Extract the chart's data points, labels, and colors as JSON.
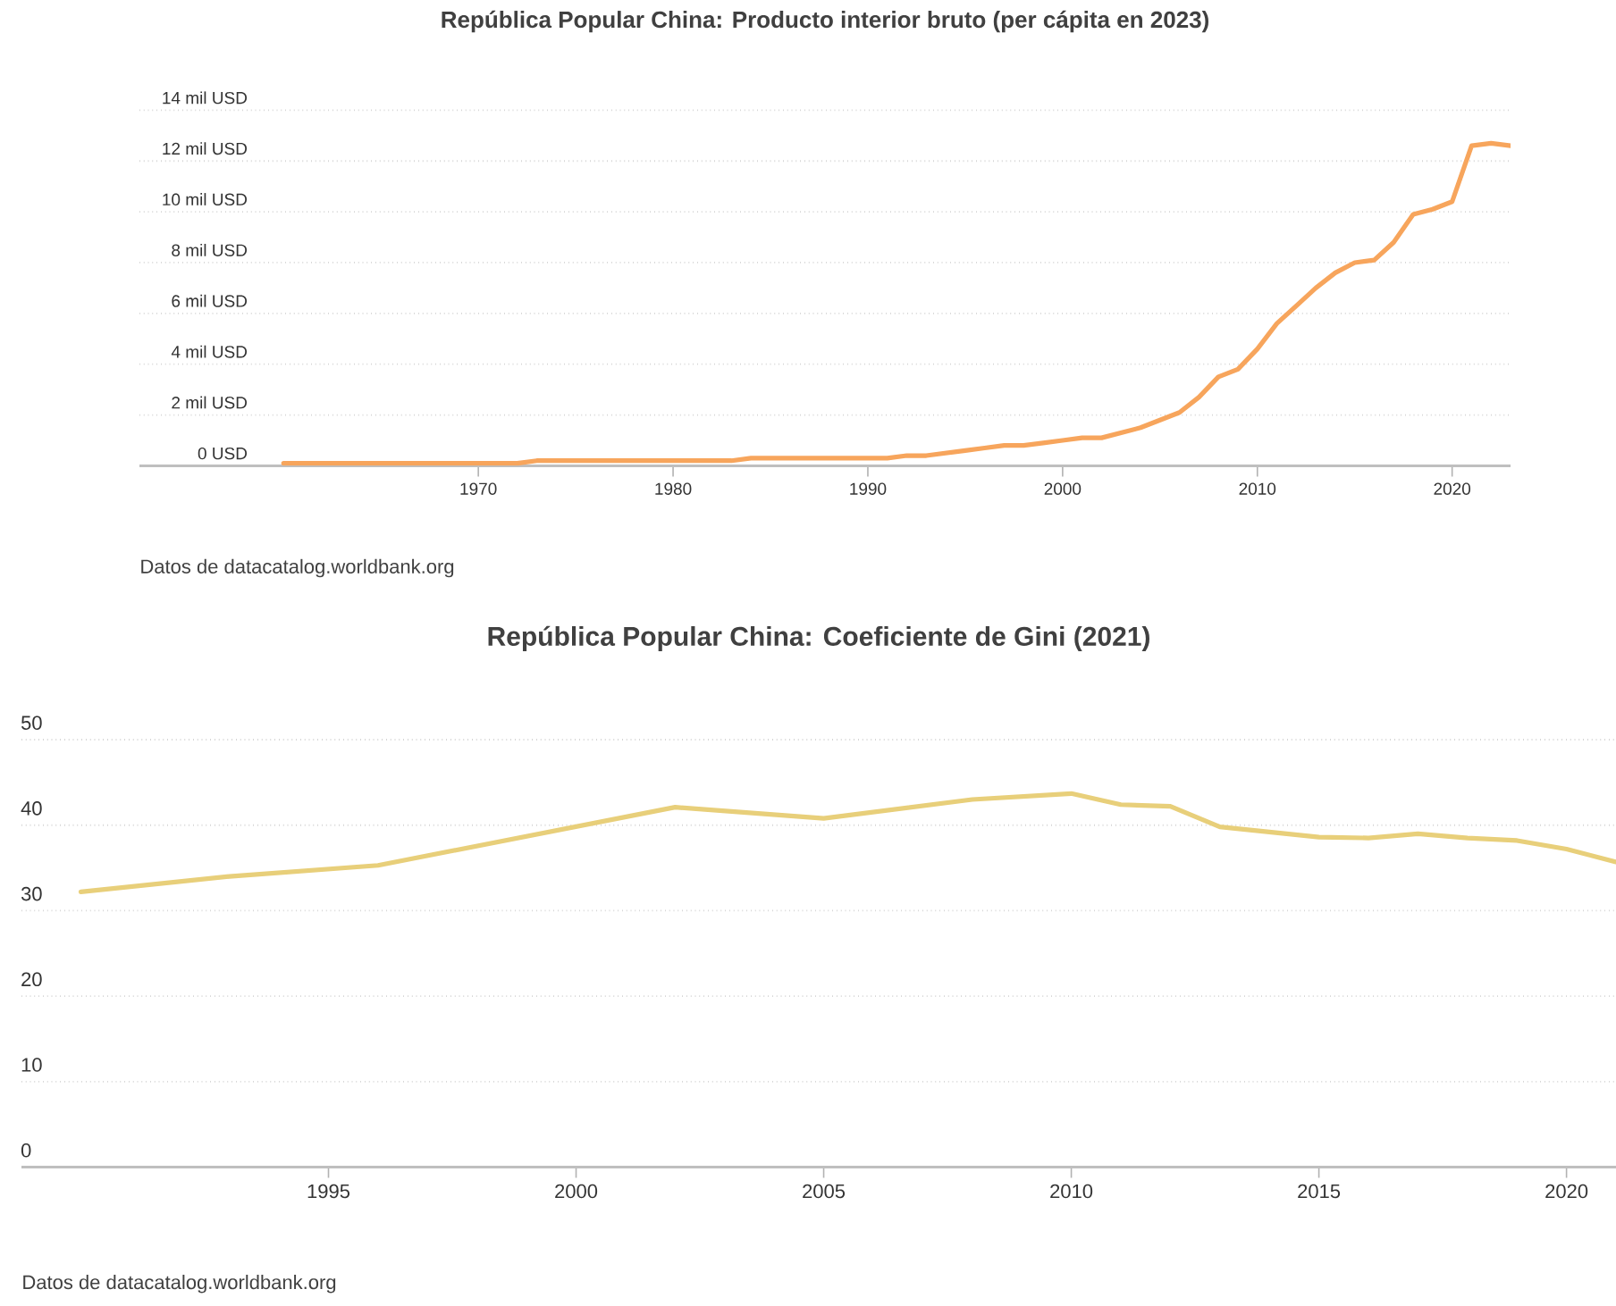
{
  "chart_data": [
    {
      "type": "line",
      "title": "República Popular China: Producto interior bruto (per cápita en 2023)",
      "color": "#f7a55c",
      "grid": "y",
      "x": [
        1960,
        1961,
        1962,
        1963,
        1964,
        1965,
        1966,
        1967,
        1968,
        1969,
        1970,
        1971,
        1972,
        1973,
        1974,
        1975,
        1976,
        1977,
        1978,
        1979,
        1980,
        1981,
        1982,
        1983,
        1984,
        1985,
        1986,
        1987,
        1988,
        1989,
        1990,
        1991,
        1992,
        1993,
        1994,
        1995,
        1996,
        1997,
        1998,
        1999,
        2000,
        2001,
        2002,
        2003,
        2004,
        2005,
        2006,
        2007,
        2008,
        2009,
        2010,
        2011,
        2012,
        2013,
        2014,
        2015,
        2016,
        2017,
        2018,
        2019,
        2020,
        2021,
        2022,
        2023
      ],
      "values": [
        0.1,
        0.1,
        0.1,
        0.1,
        0.1,
        0.1,
        0.1,
        0.1,
        0.1,
        0.1,
        0.1,
        0.1,
        0.1,
        0.2,
        0.2,
        0.2,
        0.2,
        0.2,
        0.2,
        0.2,
        0.2,
        0.2,
        0.2,
        0.2,
        0.3,
        0.3,
        0.3,
        0.3,
        0.3,
        0.3,
        0.3,
        0.3,
        0.4,
        0.4,
        0.5,
        0.6,
        0.7,
        0.8,
        0.8,
        0.9,
        1.0,
        1.1,
        1.1,
        1.3,
        1.5,
        1.8,
        2.1,
        2.7,
        3.5,
        3.8,
        4.6,
        5.6,
        6.3,
        7.0,
        7.6,
        8.0,
        8.1,
        8.8,
        9.9,
        10.1,
        10.4,
        12.6,
        12.7,
        12.6
      ],
      "xlim": [
        1952.6,
        2023
      ],
      "ylim": [
        0,
        14
      ],
      "xticks": [
        1970,
        1980,
        1990,
        2000,
        2010,
        2020
      ],
      "yticks": [
        {
          "value": 0,
          "label": "0 USD"
        },
        {
          "value": 2,
          "label": "2 mil USD"
        },
        {
          "value": 4,
          "label": "4 mil USD"
        },
        {
          "value": 6,
          "label": "6 mil USD"
        },
        {
          "value": 8,
          "label": "8 mil USD"
        },
        {
          "value": 10,
          "label": "10 mil USD"
        },
        {
          "value": 12,
          "label": "12 mil USD"
        },
        {
          "value": 14,
          "label": "14 mil USD"
        }
      ],
      "annotations": [
        "Datos de datacatalog.worldbank.org"
      ]
    },
    {
      "type": "line",
      "title": "República Popular China: Coeficiente de Gini (2021)",
      "color": "#e8cf7a",
      "grid": "y",
      "x": [
        1990,
        1993,
        1996,
        1999,
        2002,
        2005,
        2008,
        2010,
        2011,
        2012,
        2013,
        2014,
        2015,
        2016,
        2017,
        2018,
        2019,
        2020,
        2021
      ],
      "values": [
        32.2,
        34.0,
        35.3,
        38.7,
        42.1,
        40.8,
        43.0,
        43.7,
        42.4,
        42.2,
        39.8,
        39.2,
        38.6,
        38.5,
        39.0,
        38.5,
        38.2,
        37.2,
        35.7
      ],
      "xlim": [
        1988.8,
        2021
      ],
      "ylim": [
        0,
        50
      ],
      "xticks": [
        1995,
        2000,
        2005,
        2010,
        2015,
        2020
      ],
      "yticks": [
        0,
        10,
        20,
        30,
        40,
        50
      ],
      "annotations": [
        "Datos de datacatalog.worldbank.org"
      ]
    }
  ]
}
